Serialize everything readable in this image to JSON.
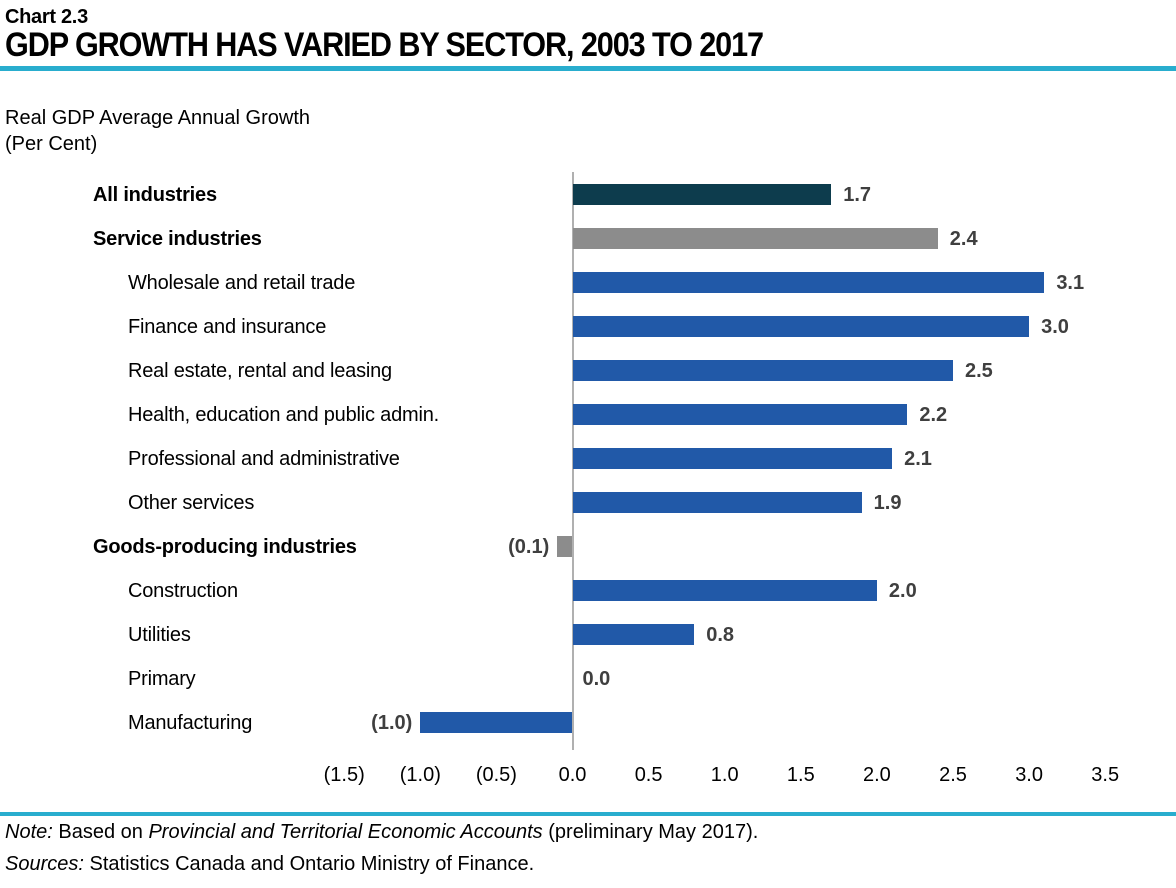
{
  "header": {
    "kicker": "Chart 2.3",
    "title": "GDP GROWTH HAS VARIED BY SECTOR, 2003 TO 2017"
  },
  "subtitle": {
    "line1": "Real GDP Average Annual Growth",
    "line2": "(Per Cent)"
  },
  "note": {
    "prefix": "Note:",
    "body1": " Based on ",
    "italic_part": "Provincial and Territorial Economic Accounts",
    "suffix": " (preliminary May 2017)."
  },
  "sources": {
    "prefix": "Sources:",
    "body": " Statistics Canada and Ontario Ministry of Finance."
  },
  "colors": {
    "accent_rule": "#29adce",
    "bar_teal": "#0d3c4d",
    "bar_blue": "#2159a8",
    "bar_gray": "#8c8c8c",
    "value_label": "#3f3f3f",
    "axis_line": "#b0b0b0"
  },
  "chart_data": {
    "type": "bar",
    "orientation": "horizontal",
    "title": "Real GDP Average Annual Growth",
    "unit_label": "(Per Cent)",
    "xlim": [
      -1.5,
      3.5
    ],
    "grid": false,
    "legend": false,
    "x_ticks": [
      "(1.5)",
      "(1.0)",
      "(0.5)",
      "0.0",
      "0.5",
      "1.0",
      "1.5",
      "2.0",
      "2.5",
      "3.0",
      "3.5"
    ],
    "x_tick_values": [
      -1.5,
      -1.0,
      -0.5,
      0.0,
      0.5,
      1.0,
      1.5,
      2.0,
      2.5,
      3.0,
      3.5
    ],
    "rows": [
      {
        "label": "All industries",
        "value": 1.7,
        "display": "1.7",
        "style": "teal",
        "bold": true,
        "indent": false
      },
      {
        "label": "Service industries",
        "value": 2.4,
        "display": "2.4",
        "style": "gray",
        "bold": true,
        "indent": false
      },
      {
        "label": "Wholesale and retail trade",
        "value": 3.1,
        "display": "3.1",
        "style": "blue",
        "bold": false,
        "indent": true
      },
      {
        "label": "Finance and insurance",
        "value": 3.0,
        "display": "3.0",
        "style": "blue",
        "bold": false,
        "indent": true
      },
      {
        "label": "Real estate, rental and leasing",
        "value": 2.5,
        "display": "2.5",
        "style": "blue",
        "bold": false,
        "indent": true
      },
      {
        "label": "Health, education and public admin.",
        "value": 2.2,
        "display": "2.2",
        "style": "blue",
        "bold": false,
        "indent": true
      },
      {
        "label": "Professional and administrative",
        "value": 2.1,
        "display": "2.1",
        "style": "blue",
        "bold": false,
        "indent": true
      },
      {
        "label": "Other services",
        "value": 1.9,
        "display": "1.9",
        "style": "blue",
        "bold": false,
        "indent": true
      },
      {
        "label": "Goods-producing industries",
        "value": -0.1,
        "display": "(0.1)",
        "style": "gray",
        "bold": true,
        "indent": false
      },
      {
        "label": "Construction",
        "value": 2.0,
        "display": "2.0",
        "style": "blue",
        "bold": false,
        "indent": true
      },
      {
        "label": "Utilities",
        "value": 0.8,
        "display": "0.8",
        "style": "blue",
        "bold": false,
        "indent": true
      },
      {
        "label": "Primary",
        "value": 0.0,
        "display": "0.0",
        "style": "blue",
        "bold": false,
        "indent": true
      },
      {
        "label": "Manufacturing",
        "value": -1.0,
        "display": "(1.0)",
        "style": "blue",
        "bold": false,
        "indent": true
      }
    ]
  }
}
